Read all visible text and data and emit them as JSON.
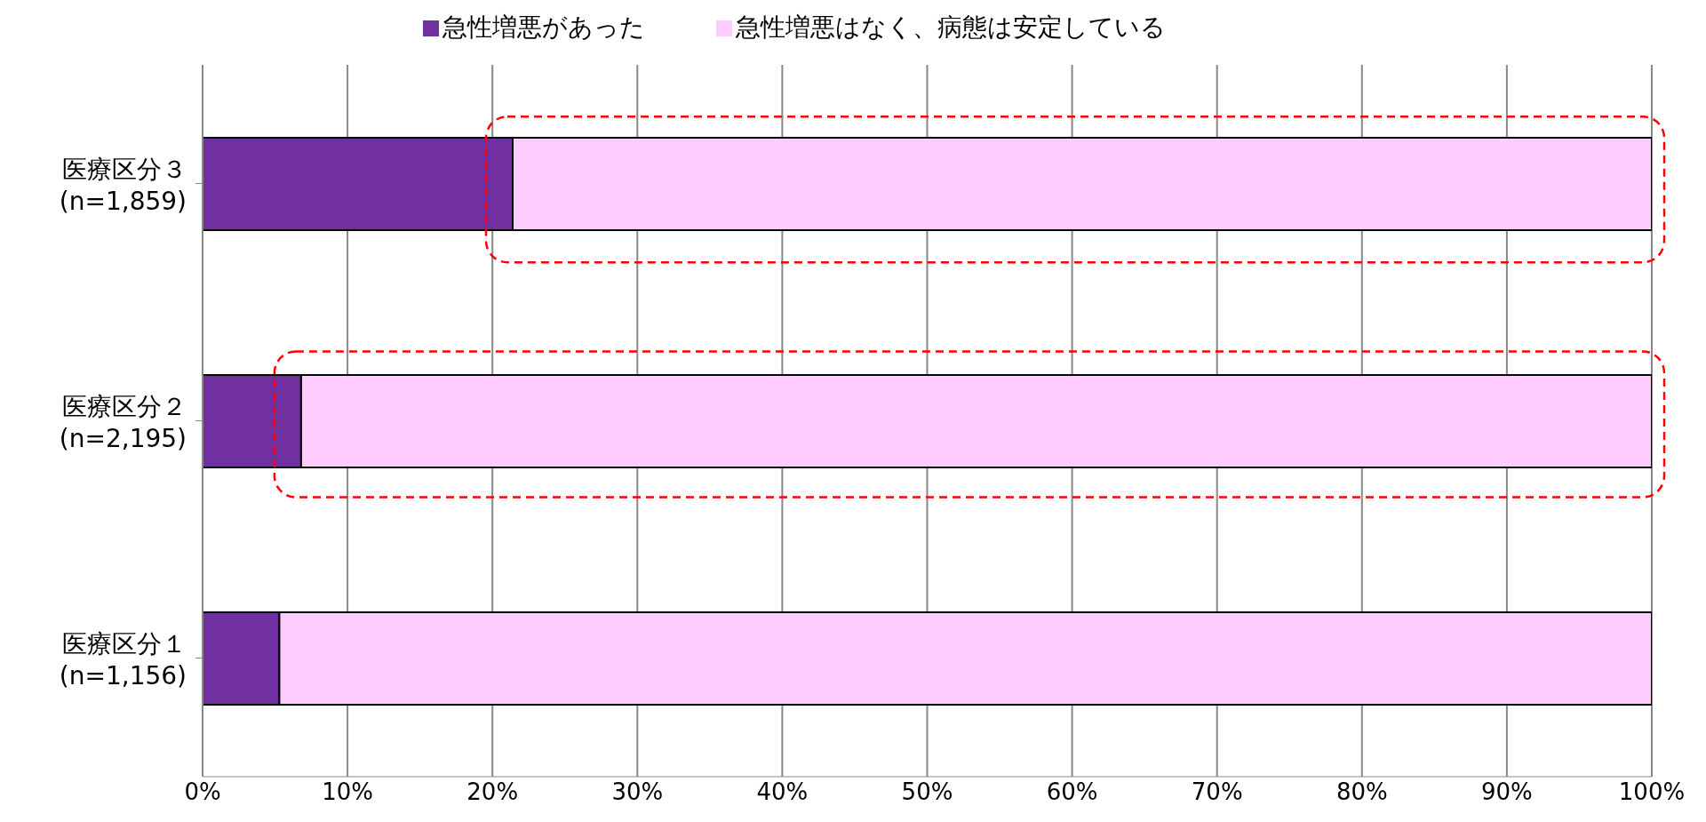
{
  "chart_data": {
    "type": "bar",
    "orientation": "horizontal",
    "stacked": true,
    "categories": [
      "医療区分３\n(n=1,859)",
      "医療区分２\n(n=2,195)",
      "医療区分１\n(n=1,156)"
    ],
    "series": [
      {
        "name": "急性増悪があった",
        "color": "#7030a0",
        "values": [
          21.4,
          6.8,
          5.3
        ]
      },
      {
        "name": "急性増悪はなく、病態は安定している",
        "color": "#ffccff",
        "values": [
          78.6,
          93.2,
          94.7
        ]
      }
    ],
    "xlim": [
      0,
      100
    ],
    "xticks": [
      {
        "value": 0,
        "label": "0%"
      },
      {
        "value": 10,
        "label": "10%"
      },
      {
        "value": 20,
        "label": "20%"
      },
      {
        "value": 30,
        "label": "30%"
      },
      {
        "value": 40,
        "label": "40%"
      },
      {
        "value": 50,
        "label": "50%"
      },
      {
        "value": 60,
        "label": "60%"
      },
      {
        "value": 70,
        "label": "70%"
      },
      {
        "value": 80,
        "label": "80%"
      },
      {
        "value": 90,
        "label": "90%"
      },
      {
        "value": 100,
        "label": "100%"
      }
    ],
    "grid": "x",
    "legend": "top"
  }
}
